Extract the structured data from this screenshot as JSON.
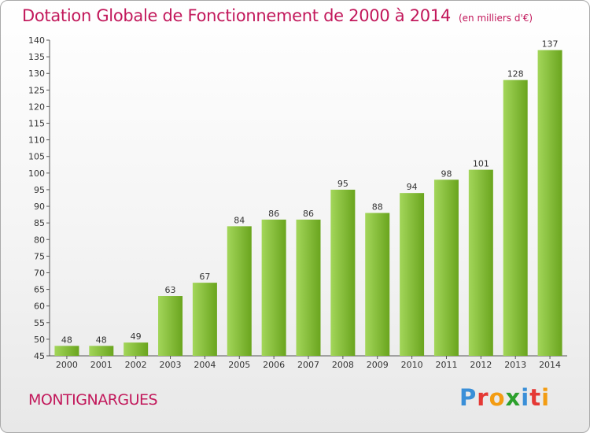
{
  "header": {
    "title": "Dotation Globale de Fonctionnement de 2000 à 2014",
    "unit": "(en milliers d'€)"
  },
  "footer": {
    "commune": "MONTIGNARGUES",
    "brand": "Proxiti"
  },
  "colors": {
    "accent": "#c2185b",
    "bar_light": "#a3d65a",
    "bar_dark": "#6aa51e"
  },
  "chart_data": {
    "type": "bar",
    "title": "Dotation Globale de Fonctionnement de 2000 à 2014",
    "subtitle": "(en milliers d'€)",
    "categories": [
      "2000",
      "2001",
      "2002",
      "2003",
      "2004",
      "2005",
      "2006",
      "2007",
      "2008",
      "2009",
      "2010",
      "2011",
      "2012",
      "2013",
      "2014"
    ],
    "values": [
      48,
      48,
      49,
      63,
      67,
      84,
      86,
      86,
      95,
      88,
      94,
      98,
      101,
      128,
      137
    ],
    "ylim": [
      45,
      140
    ],
    "yticks": [
      45,
      50,
      55,
      60,
      65,
      70,
      75,
      80,
      85,
      90,
      95,
      100,
      105,
      110,
      115,
      120,
      125,
      130,
      135,
      140
    ],
    "grid": false,
    "legend": "none"
  }
}
